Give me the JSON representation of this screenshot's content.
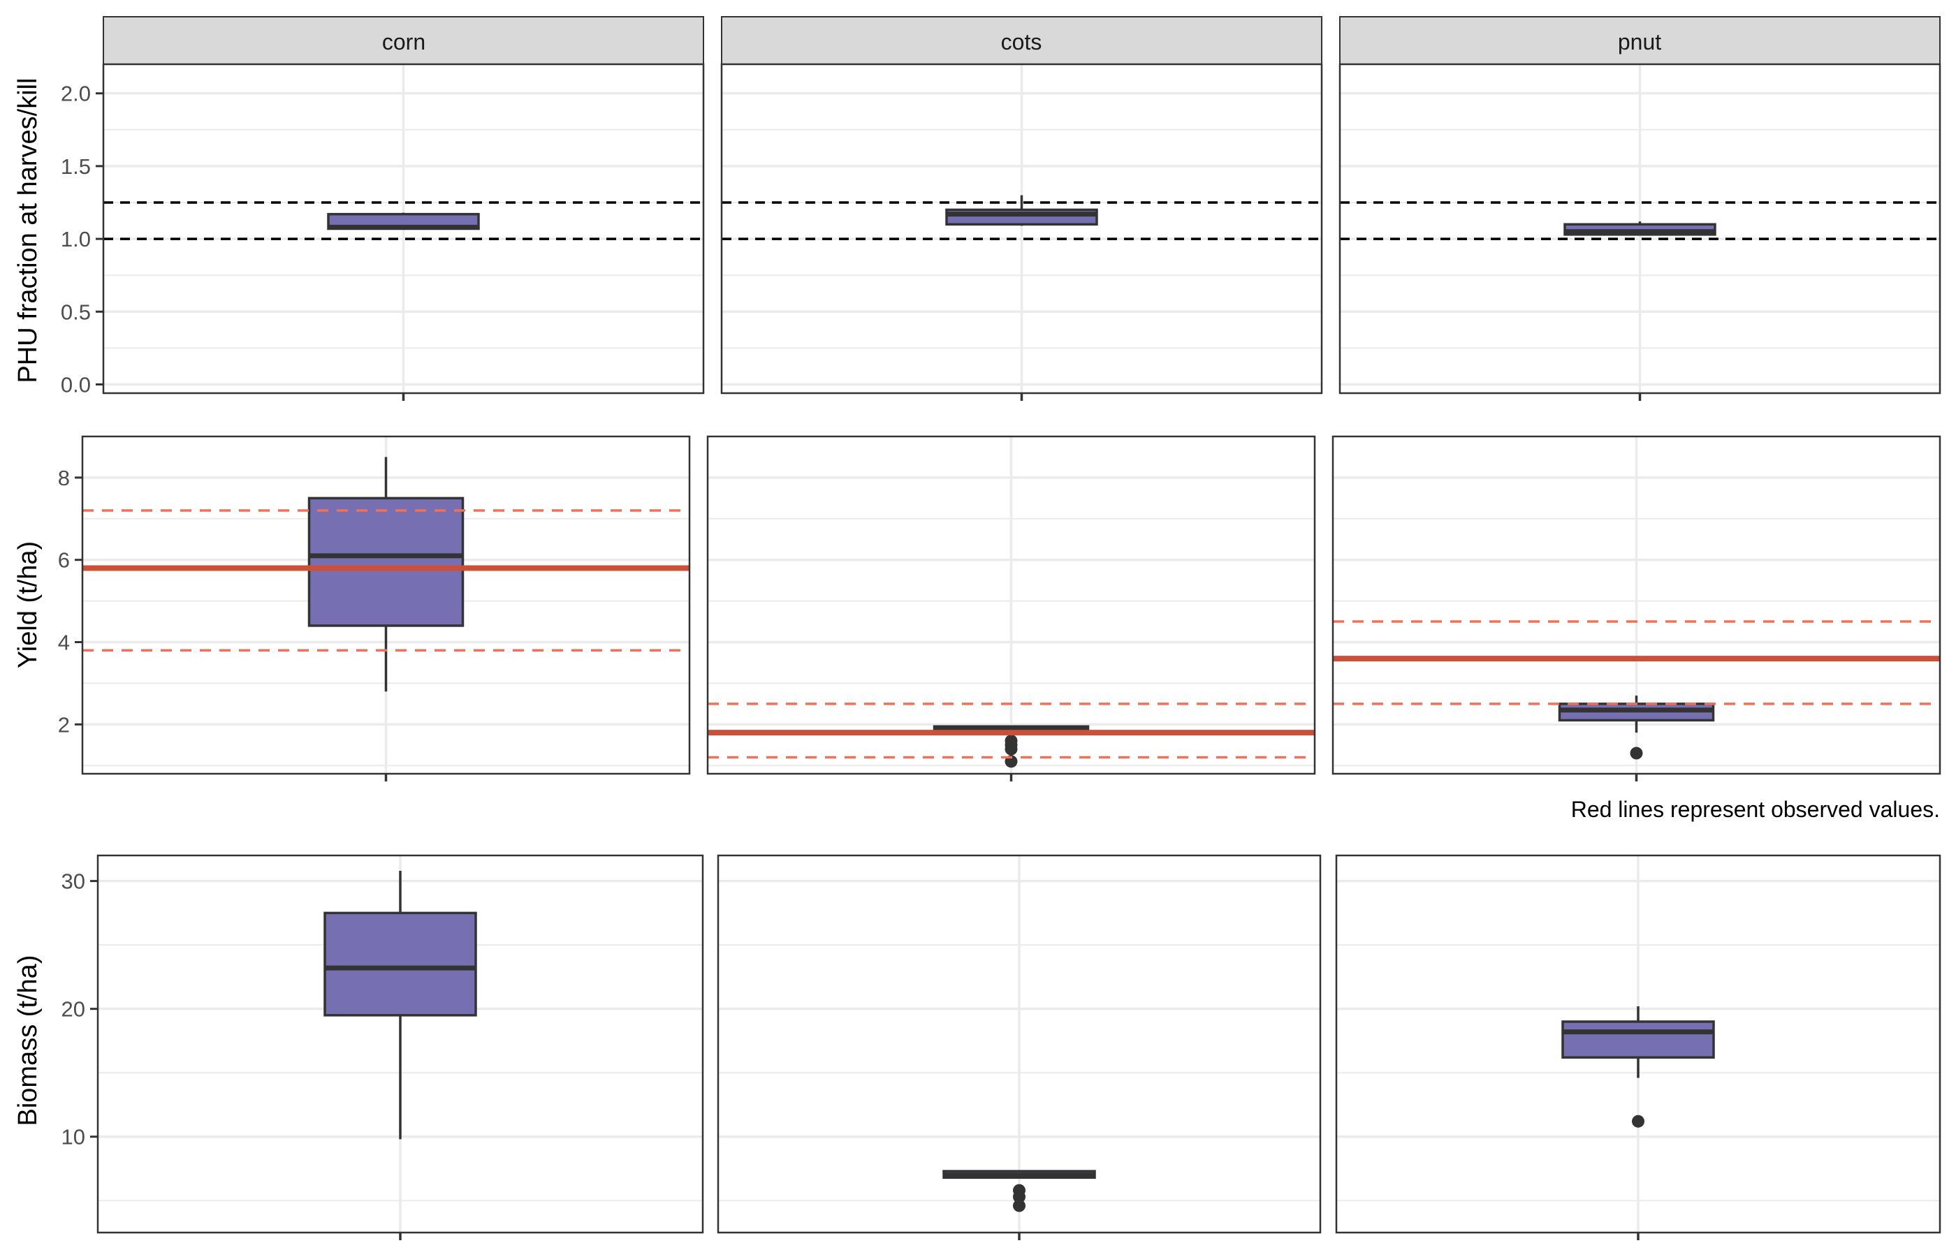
{
  "chart_data": {
    "type": "box",
    "colors": {
      "box_fill": "#7670b3",
      "box_stroke": "#333333",
      "observed_line": "#cc5038",
      "observed_range": "#f0715a",
      "phu_reference": "#000000",
      "strip_fill": "#d9d9d9",
      "grid": "#ebebeb"
    },
    "caption": "Red lines represent observed values.",
    "rows": [
      {
        "id": "phu",
        "ylabel": "PHU fraction at harves/kill",
        "ylim": [
          -0.06,
          2.2
        ],
        "yticks": [
          0.0,
          0.5,
          1.0,
          1.5,
          2.0
        ],
        "ytick_labels": [
          "0.0",
          "0.5",
          "1.0",
          "1.5",
          "2.0"
        ],
        "reference_lines": [
          1.0,
          1.25
        ],
        "panels": [
          {
            "strip": "corn",
            "box": {
              "q1": 1.07,
              "median": 1.08,
              "q3": 1.17,
              "whisker_low": 1.07,
              "whisker_high": 1.18,
              "outliers": []
            }
          },
          {
            "strip": "cots",
            "box": {
              "q1": 1.1,
              "median": 1.17,
              "q3": 1.2,
              "whisker_low": 1.09,
              "whisker_high": 1.3,
              "outliers": []
            }
          },
          {
            "strip": "pnut",
            "box": {
              "q1": 1.03,
              "median": 1.05,
              "q3": 1.1,
              "whisker_low": 1.03,
              "whisker_high": 1.12,
              "outliers": []
            }
          }
        ]
      },
      {
        "id": "yield",
        "ylabel": "Yield (t/ha)",
        "ylim": [
          0.8,
          9.0
        ],
        "yticks": [
          2,
          4,
          6,
          8
        ],
        "ytick_labels": [
          "2",
          "4",
          "6",
          "8"
        ],
        "panels": [
          {
            "observed": 5.8,
            "observed_low": 3.8,
            "observed_high": 7.2,
            "box": {
              "q1": 4.4,
              "median": 6.1,
              "q3": 7.5,
              "whisker_low": 2.8,
              "whisker_high": 8.5,
              "outliers": []
            }
          },
          {
            "observed": 1.8,
            "observed_low": 1.2,
            "observed_high": 2.5,
            "box": {
              "q1": 1.85,
              "median": 1.9,
              "q3": 1.95,
              "whisker_low": 1.85,
              "whisker_high": 1.95,
              "outliers": [
                1.6,
                1.5,
                1.4,
                1.1
              ]
            }
          },
          {
            "observed": 3.6,
            "observed_low": 2.5,
            "observed_high": 4.5,
            "box": {
              "q1": 2.1,
              "median": 2.35,
              "q3": 2.5,
              "whisker_low": 1.8,
              "whisker_high": 2.7,
              "outliers": [
                1.3
              ]
            }
          }
        ]
      },
      {
        "id": "biomass",
        "ylabel": "Biomass (t/ha)",
        "ylim": [
          2.5,
          32.0
        ],
        "yticks": [
          10,
          20,
          30
        ],
        "ytick_labels": [
          "10",
          "20",
          "30"
        ],
        "panels": [
          {
            "box": {
              "q1": 19.5,
              "median": 23.2,
              "q3": 27.5,
              "whisker_low": 9.8,
              "whisker_high": 30.8,
              "outliers": []
            }
          },
          {
            "box": {
              "q1": 6.8,
              "median": 7.0,
              "q3": 7.3,
              "whisker_low": 6.8,
              "whisker_high": 7.3,
              "outliers": [
                5.8,
                5.3,
                4.6
              ]
            }
          },
          {
            "box": {
              "q1": 16.2,
              "median": 18.2,
              "q3": 19.0,
              "whisker_low": 14.6,
              "whisker_high": 20.2,
              "outliers": [
                11.2
              ]
            }
          }
        ]
      }
    ]
  }
}
